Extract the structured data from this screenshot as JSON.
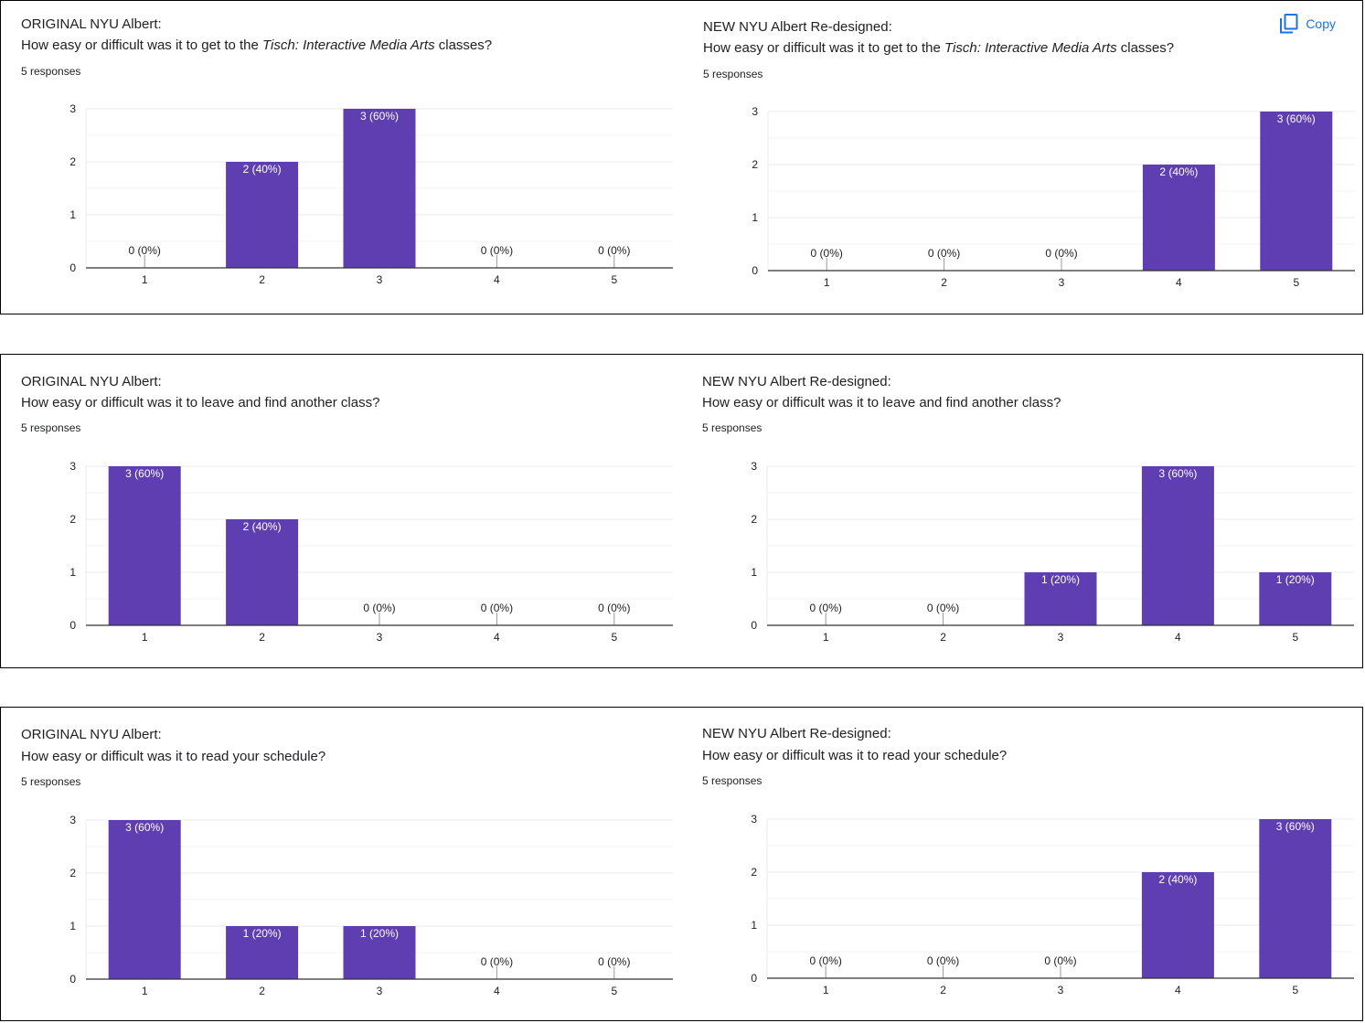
{
  "colors": {
    "bar": "#5e3eb0",
    "grid": "#ebebeb",
    "axis": "#333333",
    "text": "#202124",
    "link": "#1a73e8"
  },
  "copy_label": "Copy",
  "copy_icon": "copy-icon",
  "panels": [
    {
      "left": {
        "prefix": "ORIGINAL NYU Albert:",
        "question_before": "How easy or difficult was it to get to the ",
        "question_italic": "Tisch: Interactive Media Arts",
        "question_after": " classes?",
        "responses": "5 responses"
      },
      "right": {
        "prefix": "NEW NYU Albert Re-designed:",
        "question_before": "How easy or difficult was it to get to the ",
        "question_italic": "Tisch: Interactive Media Arts",
        "question_after": " classes?",
        "responses": "5 responses"
      }
    },
    {
      "left": {
        "prefix": "ORIGINAL NYU Albert:",
        "question_before": "How easy or difficult was it to leave and find another class?",
        "question_italic": "",
        "question_after": "",
        "responses": "5 responses"
      },
      "right": {
        "prefix": "NEW NYU Albert Re-designed:",
        "question_before": "How easy or difficult was it to leave and find another class?",
        "question_italic": "",
        "question_after": "",
        "responses": "5 responses"
      }
    },
    {
      "left": {
        "prefix": "ORIGINAL NYU Albert:",
        "question_before": "How easy or difficult was it to read your schedule?",
        "question_italic": "",
        "question_after": "",
        "responses": "5 responses"
      },
      "right": {
        "prefix": "NEW NYU Albert Re-designed:",
        "question_before": "How easy or difficult was it to read your schedule?",
        "question_italic": "",
        "question_after": "",
        "responses": "5 responses"
      }
    }
  ],
  "chart_data": [
    {
      "type": "bar",
      "categories": [
        "1",
        "2",
        "3",
        "4",
        "5"
      ],
      "values": [
        0,
        2,
        3,
        0,
        0
      ],
      "labels": [
        "0 (0%)",
        "2 (40%)",
        "3 (60%)",
        "0 (0%)",
        "0 (0%)"
      ],
      "yticks": [
        "0",
        "1",
        "2",
        "3"
      ],
      "ylim": [
        0,
        3
      ]
    },
    {
      "type": "bar",
      "categories": [
        "1",
        "2",
        "3",
        "4",
        "5"
      ],
      "values": [
        0,
        0,
        0,
        2,
        3
      ],
      "labels": [
        "0 (0%)",
        "0 (0%)",
        "0 (0%)",
        "2 (40%)",
        "3 (60%)"
      ],
      "yticks": [
        "0",
        "1",
        "2",
        "3"
      ],
      "ylim": [
        0,
        3
      ]
    },
    {
      "type": "bar",
      "categories": [
        "1",
        "2",
        "3",
        "4",
        "5"
      ],
      "values": [
        3,
        2,
        0,
        0,
        0
      ],
      "labels": [
        "3 (60%)",
        "2 (40%)",
        "0 (0%)",
        "0 (0%)",
        "0 (0%)"
      ],
      "yticks": [
        "0",
        "1",
        "2",
        "3"
      ],
      "ylim": [
        0,
        3
      ]
    },
    {
      "type": "bar",
      "categories": [
        "1",
        "2",
        "3",
        "4",
        "5"
      ],
      "values": [
        0,
        0,
        1,
        3,
        1
      ],
      "labels": [
        "0 (0%)",
        "0 (0%)",
        "1 (20%)",
        "3 (60%)",
        "1 (20%)"
      ],
      "yticks": [
        "0",
        "1",
        "2",
        "3"
      ],
      "ylim": [
        0,
        3
      ]
    },
    {
      "type": "bar",
      "categories": [
        "1",
        "2",
        "3",
        "4",
        "5"
      ],
      "values": [
        3,
        1,
        1,
        0,
        0
      ],
      "labels": [
        "3 (60%)",
        "1 (20%)",
        "1 (20%)",
        "0 (0%)",
        "0 (0%)"
      ],
      "yticks": [
        "0",
        "1",
        "2",
        "3"
      ],
      "ylim": [
        0,
        3
      ]
    },
    {
      "type": "bar",
      "categories": [
        "1",
        "2",
        "3",
        "4",
        "5"
      ],
      "values": [
        0,
        0,
        0,
        2,
        3
      ],
      "labels": [
        "0 (0%)",
        "0 (0%)",
        "0 (0%)",
        "2 (40%)",
        "3 (60%)"
      ],
      "yticks": [
        "0",
        "1",
        "2",
        "3"
      ],
      "ylim": [
        0,
        3
      ]
    }
  ]
}
